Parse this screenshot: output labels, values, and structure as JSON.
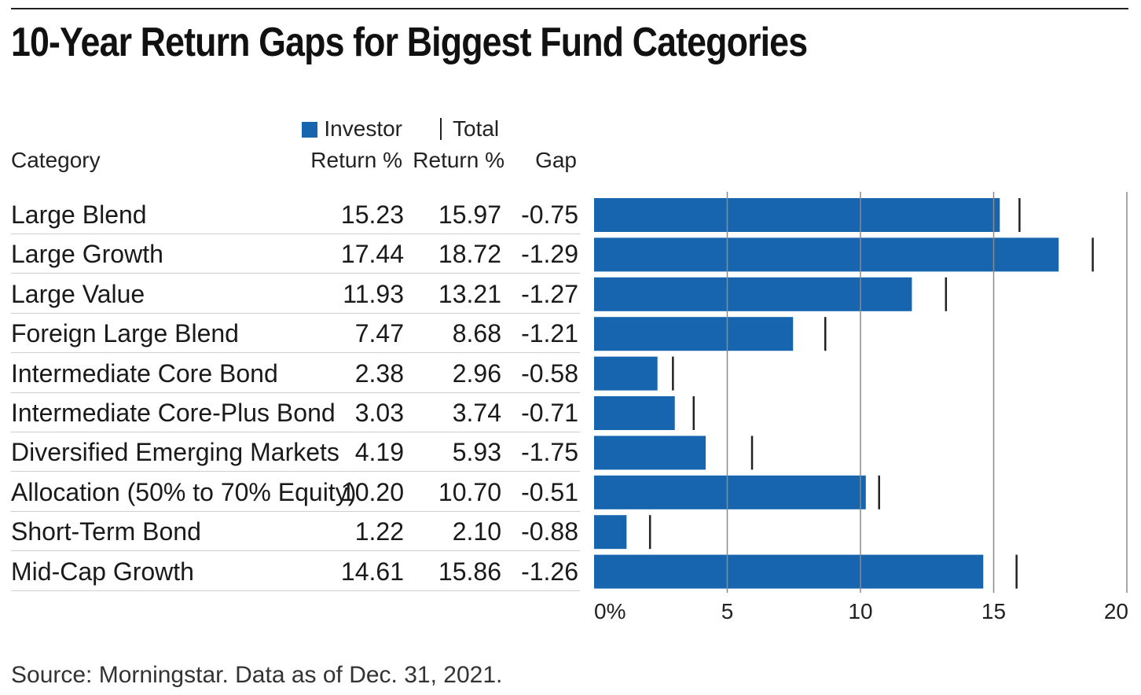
{
  "title": "10-Year Return Gaps for Biggest Fund Categories",
  "source": "Source: Morningstar. Data as of Dec. 31, 2021.",
  "colors": {
    "bar": "#1665ae",
    "marker": "#222222",
    "grid": "#8a8a8a"
  },
  "headers": {
    "category": "Category",
    "investor_line1": "Investor",
    "investor_line2": "Return %",
    "total_line1": "Total",
    "total_line2": "Return %",
    "gap": "Gap"
  },
  "table": [
    {
      "category": "Large Blend",
      "investor": "15.23",
      "total": "15.97",
      "gap": "-0.75"
    },
    {
      "category": "Large Growth",
      "investor": "17.44",
      "total": "18.72",
      "gap": "-1.29"
    },
    {
      "category": "Large Value",
      "investor": "11.93",
      "total": "13.21",
      "gap": "-1.27"
    },
    {
      "category": "Foreign Large Blend",
      "investor": "7.47",
      "total": "8.68",
      "gap": "-1.21"
    },
    {
      "category": "Intermediate Core Bond",
      "investor": "2.38",
      "total": "2.96",
      "gap": "-0.58"
    },
    {
      "category": "Intermediate Core-Plus Bond",
      "investor": "3.03",
      "total": "3.74",
      "gap": "-0.71"
    },
    {
      "category": "Diversified Emerging Markets",
      "investor": "4.19",
      "total": "5.93",
      "gap": "-1.75"
    },
    {
      "category": "Allocation (50% to 70% Equity)",
      "investor": "10.20",
      "total": "10.70",
      "gap": "-0.51"
    },
    {
      "category": "Short-Term Bond",
      "investor": "1.22",
      "total": "2.10",
      "gap": "-0.88"
    },
    {
      "category": "Mid-Cap Growth",
      "investor": "14.61",
      "total": "15.86",
      "gap": "-1.26"
    }
  ],
  "chart_data": {
    "type": "bar",
    "orientation": "horizontal",
    "categories": [
      "Large Blend",
      "Large Growth",
      "Large Value",
      "Foreign Large Blend",
      "Intermediate Core Bond",
      "Intermediate Core-Plus Bond",
      "Diversified Emerging Markets",
      "Allocation (50% to 70% Equity)",
      "Short-Term Bond",
      "Mid-Cap Growth"
    ],
    "series": [
      {
        "name": "Investor Return %",
        "mark": "bar",
        "values": [
          15.23,
          17.44,
          11.93,
          7.47,
          2.38,
          3.03,
          4.19,
          10.2,
          1.22,
          14.61
        ]
      },
      {
        "name": "Total Return %",
        "mark": "tick",
        "values": [
          15.97,
          18.72,
          13.21,
          8.68,
          2.96,
          3.74,
          5.93,
          10.7,
          2.1,
          15.86
        ]
      }
    ],
    "gap": [
      -0.75,
      -1.29,
      -1.27,
      -1.21,
      -0.58,
      -0.71,
      -1.75,
      -0.51,
      -0.88,
      -1.26
    ],
    "xlim": [
      0,
      20
    ],
    "xticks": [
      0,
      5,
      10,
      15,
      20
    ],
    "xtick_labels": [
      "0%",
      "5",
      "10",
      "15",
      "20"
    ],
    "grid": true,
    "legend": "top"
  }
}
